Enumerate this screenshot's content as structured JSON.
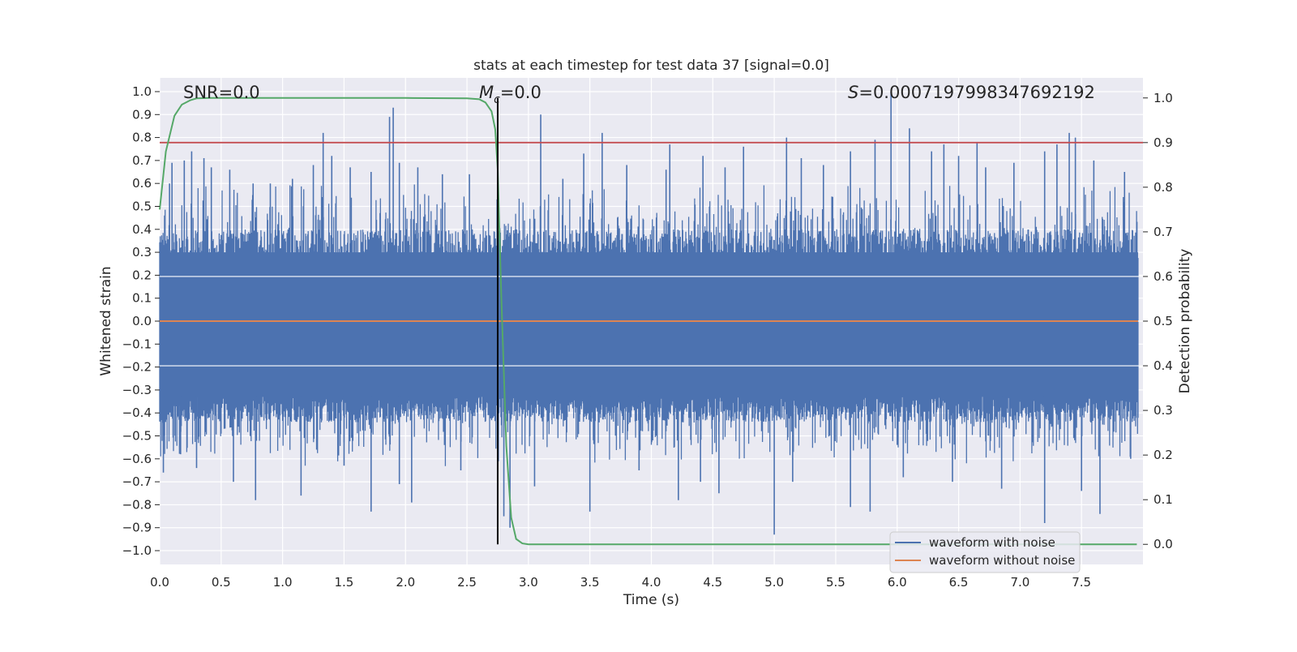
{
  "chart_data": {
    "type": "line",
    "title": "stats at each timestep for test data 37 [signal=0.0]",
    "xlabel": "Time (s)",
    "ylabel": "Whitened strain",
    "y2label": "Detection probability",
    "xlim": [
      0.0,
      8.0
    ],
    "ylim": [
      -1.06,
      1.06
    ],
    "y2lim": [
      -0.045,
      1.045
    ],
    "xticks": [
      0.0,
      0.5,
      1.0,
      1.5,
      2.0,
      2.5,
      3.0,
      3.5,
      4.0,
      4.5,
      5.0,
      5.5,
      6.0,
      6.5,
      7.0,
      7.5
    ],
    "yticks": [
      1.0,
      0.9,
      0.8,
      0.7,
      0.6,
      0.5,
      0.4,
      0.3,
      0.2,
      0.1,
      0.0,
      -0.1,
      -0.2,
      -0.3,
      -0.4,
      -0.5,
      -0.6,
      -0.7,
      -0.8,
      -0.9,
      -1.0
    ],
    "y2ticks": [
      1.0,
      0.9,
      0.8,
      0.7,
      0.6,
      0.5,
      0.4,
      0.3,
      0.2,
      0.1,
      0.0
    ],
    "grid": true,
    "legend_position": "lower right",
    "annotations": {
      "snr": "SNR=0.0",
      "mc_symbol": "M",
      "mc_sub": "c",
      "mc_value": "=0.0",
      "s_symbol": "S",
      "s_value": "=0.0007197998347692192"
    },
    "series": [
      {
        "name": "waveform with noise",
        "axis": "left",
        "color": "#4c72b0",
        "description_of_extent": "dense noise, typical range ±0.45, peaks up to 1.0 near t=5.95 and down to -0.93 near t=5.0"
      },
      {
        "name": "waveform without noise",
        "axis": "left",
        "color": "#dd8452",
        "values_constant": 0.0
      },
      {
        "axis": "right",
        "color": "#55a868",
        "x": [
          0.0,
          0.05,
          0.12,
          0.18,
          0.25,
          0.3,
          0.4,
          0.5,
          1.0,
          2.0,
          2.5,
          2.6,
          2.65,
          2.7,
          2.73,
          2.75,
          2.78,
          2.82,
          2.86,
          2.9,
          2.95,
          3.0,
          4.0,
          5.0,
          6.0,
          7.0,
          7.95
        ],
        "values": [
          0.75,
          0.88,
          0.96,
          0.985,
          0.995,
          0.999,
          1.0,
          1.0,
          1.0,
          1.0,
          0.999,
          0.997,
          0.99,
          0.97,
          0.93,
          0.84,
          0.55,
          0.22,
          0.06,
          0.012,
          0.002,
          0.0,
          0.0,
          0.0,
          0.0,
          0.0,
          0.0
        ]
      },
      {
        "axis": "right",
        "color": "#c44e52",
        "values_constant": 0.9
      }
    ],
    "vertical_marker": {
      "x": 2.75,
      "y_from": 0.0,
      "y_to": 1.0,
      "axis": "right",
      "color": "#000000"
    },
    "noise_spikes": [
      {
        "x": 0.04,
        "y": 0.46
      },
      {
        "x": 0.08,
        "y": 0.6
      },
      {
        "x": 0.1,
        "y": 0.69
      },
      {
        "x": 0.2,
        "y": 0.7
      },
      {
        "x": 0.26,
        "y": 0.74
      },
      {
        "x": 0.36,
        "y": 0.71
      },
      {
        "x": 0.42,
        "y": 0.67
      },
      {
        "x": 0.57,
        "y": 0.66
      },
      {
        "x": 0.76,
        "y": 0.6
      },
      {
        "x": 0.9,
        "y": 0.6
      },
      {
        "x": 1.08,
        "y": 0.62
      },
      {
        "x": 1.25,
        "y": 0.68
      },
      {
        "x": 1.33,
        "y": 0.82
      },
      {
        "x": 1.4,
        "y": 0.72
      },
      {
        "x": 1.55,
        "y": 0.67
      },
      {
        "x": 1.72,
        "y": 0.65
      },
      {
        "x": 1.87,
        "y": 0.89
      },
      {
        "x": 1.9,
        "y": 0.93
      },
      {
        "x": 1.95,
        "y": 0.69
      },
      {
        "x": 2.1,
        "y": 0.67
      },
      {
        "x": 2.3,
        "y": 0.64
      },
      {
        "x": 2.52,
        "y": 0.64
      },
      {
        "x": 3.1,
        "y": 0.9
      },
      {
        "x": 3.28,
        "y": 0.62
      },
      {
        "x": 3.45,
        "y": 0.73
      },
      {
        "x": 3.6,
        "y": 0.82
      },
      {
        "x": 3.8,
        "y": 0.68
      },
      {
        "x": 4.12,
        "y": 0.66
      },
      {
        "x": 4.15,
        "y": 0.77
      },
      {
        "x": 4.42,
        "y": 0.72
      },
      {
        "x": 4.6,
        "y": 0.67
      },
      {
        "x": 4.75,
        "y": 0.76
      },
      {
        "x": 5.1,
        "y": 0.8
      },
      {
        "x": 5.22,
        "y": 0.71
      },
      {
        "x": 5.4,
        "y": 0.68
      },
      {
        "x": 5.62,
        "y": 0.74
      },
      {
        "x": 5.82,
        "y": 0.79
      },
      {
        "x": 5.95,
        "y": 1.0
      },
      {
        "x": 6.1,
        "y": 0.84
      },
      {
        "x": 6.28,
        "y": 0.74
      },
      {
        "x": 6.38,
        "y": 0.77
      },
      {
        "x": 6.5,
        "y": 0.72
      },
      {
        "x": 6.65,
        "y": 0.78
      },
      {
        "x": 6.72,
        "y": 0.67
      },
      {
        "x": 6.95,
        "y": 0.69
      },
      {
        "x": 7.2,
        "y": 0.74
      },
      {
        "x": 7.3,
        "y": 0.77
      },
      {
        "x": 7.4,
        "y": 0.82
      },
      {
        "x": 7.45,
        "y": 0.8
      },
      {
        "x": 7.6,
        "y": 0.7
      },
      {
        "x": 7.85,
        "y": 0.65
      },
      {
        "x": 0.03,
        "y": -0.66
      },
      {
        "x": 0.17,
        "y": -0.58
      },
      {
        "x": 0.3,
        "y": -0.64
      },
      {
        "x": 0.6,
        "y": -0.7
      },
      {
        "x": 0.78,
        "y": -0.78
      },
      {
        "x": 1.15,
        "y": -0.76
      },
      {
        "x": 1.5,
        "y": -0.63
      },
      {
        "x": 1.72,
        "y": -0.83
      },
      {
        "x": 1.95,
        "y": -0.71
      },
      {
        "x": 2.05,
        "y": -0.79
      },
      {
        "x": 2.45,
        "y": -0.65
      },
      {
        "x": 2.8,
        "y": -0.85
      },
      {
        "x": 2.85,
        "y": -0.9
      },
      {
        "x": 3.05,
        "y": -0.72
      },
      {
        "x": 3.5,
        "y": -0.83
      },
      {
        "x": 3.9,
        "y": -0.65
      },
      {
        "x": 4.22,
        "y": -0.78
      },
      {
        "x": 4.4,
        "y": -0.7
      },
      {
        "x": 4.55,
        "y": -0.75
      },
      {
        "x": 5.0,
        "y": -0.93
      },
      {
        "x": 5.15,
        "y": -0.7
      },
      {
        "x": 5.62,
        "y": -0.81
      },
      {
        "x": 5.78,
        "y": -0.83
      },
      {
        "x": 6.05,
        "y": -0.68
      },
      {
        "x": 6.45,
        "y": -0.7
      },
      {
        "x": 6.85,
        "y": -0.73
      },
      {
        "x": 7.2,
        "y": -0.88
      },
      {
        "x": 7.5,
        "y": -0.74
      },
      {
        "x": 7.65,
        "y": -0.84
      },
      {
        "x": 7.9,
        "y": -0.6
      }
    ]
  }
}
